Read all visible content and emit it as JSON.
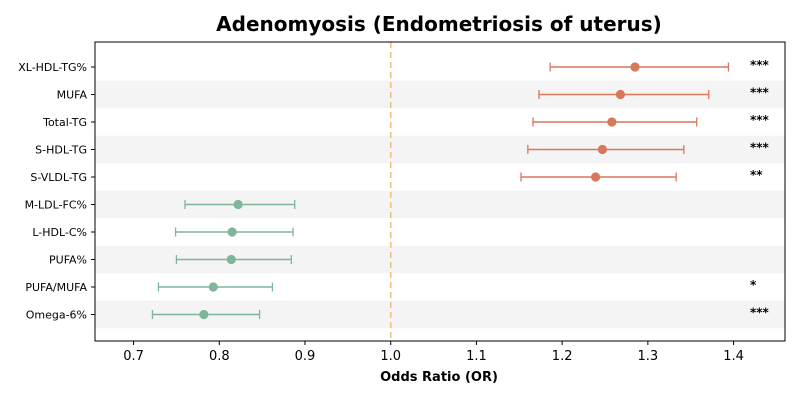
{
  "chart_data": {
    "type": "forest",
    "title": "Adenomyosis (Endometriosis of uterus)",
    "xlabel": "Odds Ratio (OR)",
    "xlim": [
      0.655,
      1.46
    ],
    "xticks": [
      0.7,
      0.8,
      0.9,
      1.0,
      1.1,
      1.2,
      1.3,
      1.4
    ],
    "xtick_labels": [
      "0.7",
      "0.8",
      "0.9",
      "1.0",
      "1.1",
      "1.2",
      "1.3",
      "1.4"
    ],
    "reference_line": 1.0,
    "row_banding": true,
    "colors": {
      "positive": "#d9775a",
      "negative": "#7fb59a",
      "reference": "#f0c080",
      "band": "#f4f4f4"
    },
    "rows": [
      {
        "label": "XL-HDL-TG%",
        "or": 1.285,
        "lo": 1.186,
        "hi": 1.394,
        "sig": "***",
        "direction": "positive"
      },
      {
        "label": "MUFA",
        "or": 1.268,
        "lo": 1.173,
        "hi": 1.371,
        "sig": "***",
        "direction": "positive"
      },
      {
        "label": "Total-TG",
        "or": 1.258,
        "lo": 1.166,
        "hi": 1.357,
        "sig": "***",
        "direction": "positive"
      },
      {
        "label": "S-HDL-TG",
        "or": 1.247,
        "lo": 1.16,
        "hi": 1.342,
        "sig": "***",
        "direction": "positive"
      },
      {
        "label": "S-VLDL-TG",
        "or": 1.239,
        "lo": 1.152,
        "hi": 1.333,
        "sig": "**",
        "direction": "positive"
      },
      {
        "label": "M-LDL-FC%",
        "or": 0.822,
        "lo": 0.76,
        "hi": 0.888,
        "sig": "",
        "direction": "negative"
      },
      {
        "label": "L-HDL-C%",
        "or": 0.815,
        "lo": 0.749,
        "hi": 0.886,
        "sig": "",
        "direction": "negative"
      },
      {
        "label": "PUFA%",
        "or": 0.814,
        "lo": 0.75,
        "hi": 0.884,
        "sig": "",
        "direction": "negative"
      },
      {
        "label": "PUFA/MUFA",
        "or": 0.793,
        "lo": 0.729,
        "hi": 0.862,
        "sig": "*",
        "direction": "negative"
      },
      {
        "label": "Omega-6%",
        "or": 0.782,
        "lo": 0.722,
        "hi": 0.847,
        "sig": "***",
        "direction": "negative"
      }
    ]
  }
}
